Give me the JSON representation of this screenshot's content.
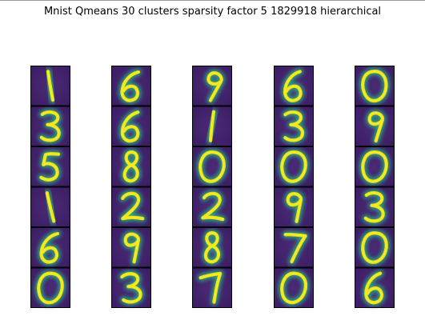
{
  "figure": {
    "title": "Mnist Qmeans 30 clusters sparsity factor 5 1829918 hierarchical"
  },
  "grid": {
    "columns": [
      [
        "1",
        "3",
        "5",
        "1",
        "6",
        "0"
      ],
      [
        "6",
        "6",
        "8",
        "2",
        "9",
        "3"
      ],
      [
        "9",
        "1",
        "0",
        "2",
        "8",
        "7"
      ],
      [
        "6",
        "3",
        "0",
        "9",
        "7",
        "0"
      ],
      [
        "0",
        "9",
        "0",
        "3",
        "0",
        "6"
      ]
    ]
  },
  "colors": {
    "tile_background": "#46206c",
    "tile_background_edge": "#3b1d63",
    "glow_outer": "#21908c",
    "glow_mid": "#35b779",
    "stroke": "#d8e219",
    "stroke_core": "#fde725",
    "frame": "#000000"
  }
}
